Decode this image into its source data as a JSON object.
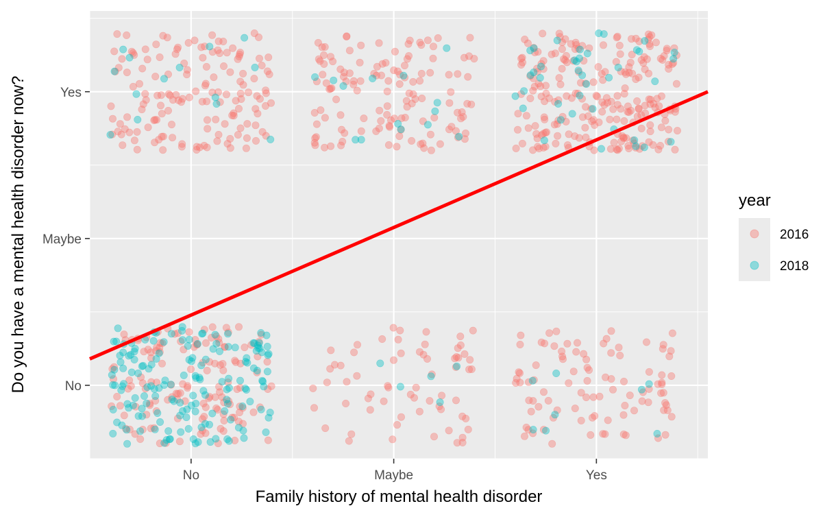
{
  "chart_data": {
    "type": "scatter",
    "jitter": true,
    "xlabel": "Family history of mental health disorder",
    "ylabel": "Do you have a mental health disorder now?",
    "categories_x": [
      "No",
      "Maybe",
      "Yes"
    ],
    "categories_y": [
      "No",
      "Maybe",
      "Yes"
    ],
    "xlim": [
      0.5,
      3.55
    ],
    "ylim": [
      0.5,
      3.55
    ],
    "grid": true,
    "legend": {
      "title": "year",
      "position": "right",
      "entries": [
        {
          "label": "2016",
          "color": "#F8766D"
        },
        {
          "label": "2018",
          "color": "#00BFC4"
        }
      ]
    },
    "series": [
      {
        "name": "2016",
        "color": "#F8766D",
        "counts": {
          "No|No": 140,
          "No|Yes": 150,
          "Maybe|No": 65,
          "Maybe|Yes": 130,
          "Yes|No": 95,
          "Yes|Yes": 230
        }
      },
      {
        "name": "2018",
        "color": "#00BFC4",
        "counts": {
          "No|No": 160,
          "No|Yes": 14,
          "Maybe|No": 5,
          "Maybe|Yes": 14,
          "Yes|No": 8,
          "Yes|Yes": 40
        }
      }
    ],
    "fit_line": {
      "color": "#FF0000",
      "x": [
        0.5,
        3.55
      ],
      "y": [
        1.18,
        3.0
      ]
    }
  }
}
